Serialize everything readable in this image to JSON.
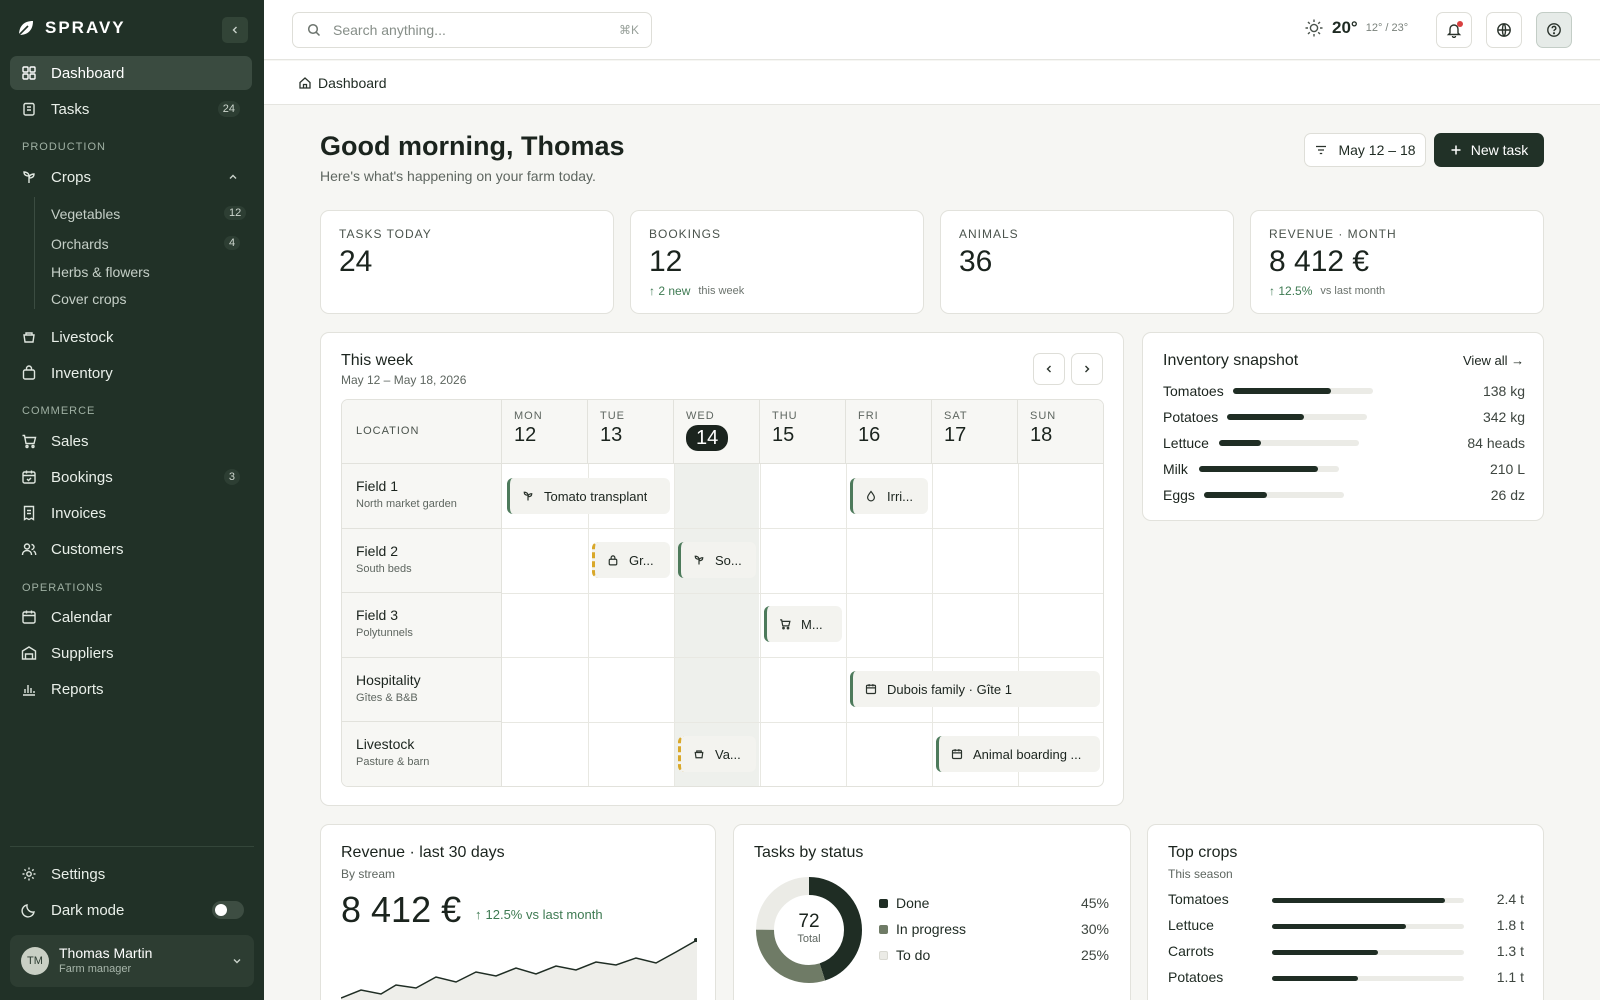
{
  "app": {
    "brand": "SPRAVY"
  },
  "sidebar": {
    "dashboard": "Dashboard",
    "tasks": {
      "label": "Tasks",
      "badge": "24"
    },
    "section_production": "PRODUCTION",
    "crops": "Crops",
    "crop_items": [
      {
        "label": "Vegetables",
        "badge": "12"
      },
      {
        "label": "Orchards",
        "badge": "4"
      },
      {
        "label": "Herbs & flowers",
        "badge": ""
      },
      {
        "label": "Cover crops",
        "badge": ""
      }
    ],
    "livestock": "Livestock",
    "inventory": "Inventory",
    "section_commerce": "COMMERCE",
    "sales": "Sales",
    "bookings": {
      "label": "Bookings",
      "badge": "3"
    },
    "invoices": "Invoices",
    "customers": "Customers",
    "section_operations": "OPERATIONS",
    "calendar": "Calendar",
    "suppliers": "Suppliers",
    "reports": "Reports",
    "settings": "Settings",
    "dark_mode": "Dark mode",
    "user": {
      "initials": "TM",
      "name": "Thomas Martin",
      "role": "Farm manager"
    }
  },
  "topbar": {
    "search_placeholder": "Search anything...",
    "shortcut": "⌘K",
    "weather": {
      "temp": "20°",
      "low": "12°",
      "high": "23°",
      "sep": "/"
    }
  },
  "breadcrumb": {
    "current": "Dashboard"
  },
  "header": {
    "greeting": "Good morning, Thomas",
    "subtitle": "Here's what's happening on your farm today.",
    "date_range": "May 12 – 18",
    "new_task": "New task"
  },
  "stats": [
    {
      "label": "TASKS TODAY",
      "value": "24",
      "delta": "",
      "note": ""
    },
    {
      "label": "BOOKINGS",
      "value": "12",
      "delta": "2 new",
      "note": "this week"
    },
    {
      "label": "ANIMALS",
      "value": "36",
      "delta": "",
      "note": ""
    },
    {
      "label": "REVENUE · MONTH",
      "value": "8 412 €",
      "delta": "12.5%",
      "note": "vs last month"
    }
  ],
  "week": {
    "title": "This week",
    "range": "May 12 – May 18, 2026",
    "location_header": "LOCATION",
    "days": [
      {
        "name": "MON",
        "date": "12"
      },
      {
        "name": "TUE",
        "date": "13"
      },
      {
        "name": "WED",
        "date": "14"
      },
      {
        "name": "THU",
        "date": "15"
      },
      {
        "name": "FRI",
        "date": "16"
      },
      {
        "name": "SAT",
        "date": "17"
      },
      {
        "name": "SUN",
        "date": "18"
      }
    ],
    "locations": [
      {
        "name": "Field 1",
        "desc": "North market garden"
      },
      {
        "name": "Field 2",
        "desc": "South beds"
      },
      {
        "name": "Field 3",
        "desc": "Polytunnels"
      },
      {
        "name": "Hospitality",
        "desc": "Gîtes & B&B"
      },
      {
        "name": "Livestock",
        "desc": "Pasture & barn"
      }
    ],
    "events": [
      {
        "label": "Tomato transplant",
        "icon": "sprout-icon",
        "status": "confirmed"
      },
      {
        "label": "Irri...",
        "icon": "droplet-icon",
        "status": "confirmed"
      },
      {
        "label": "Gr...",
        "icon": "lock-icon",
        "status": "pending"
      },
      {
        "label": "So...",
        "icon": "sprout-icon",
        "status": "confirmed"
      },
      {
        "label": "M...",
        "icon": "cart-icon",
        "status": "confirmed"
      },
      {
        "label": "Dubois family · Gîte 1",
        "icon": "calendar-icon",
        "status": "confirmed"
      },
      {
        "label": "Va...",
        "icon": "paw-icon",
        "status": "pending"
      },
      {
        "label": "Animal boarding ...",
        "icon": "calendar-icon",
        "status": "confirmed"
      }
    ]
  },
  "inventory": {
    "title": "Inventory snapshot",
    "view_all": "View all →",
    "items": [
      {
        "name": "Tomatoes",
        "amount": "138 kg",
        "level": 0.7
      },
      {
        "name": "Potatoes",
        "amount": "342 kg",
        "level": 0.55
      },
      {
        "name": "Lettuce",
        "amount": "84 heads",
        "level": 0.3
      },
      {
        "name": "Milk",
        "amount": "210 L",
        "level": 0.85
      },
      {
        "name": "Eggs",
        "amount": "26 dz",
        "level": 0.45
      }
    ]
  },
  "revenue": {
    "title": "Revenue · last 30 days",
    "subtitle": "By stream",
    "value": "8 412 €",
    "delta": "12.5% vs last month"
  },
  "tasks_status": {
    "title": "Tasks by status",
    "total": "72",
    "total_label": "Total",
    "items": [
      {
        "label": "Done",
        "pct": "45%",
        "value": 45,
        "color": "#1f2d24"
      },
      {
        "label": "In progress",
        "pct": "30%",
        "value": 30,
        "color": "#6f7b66"
      },
      {
        "label": "To do",
        "pct": "25%",
        "value": 25,
        "color": "#ebebe6"
      }
    ]
  },
  "top_crops": {
    "title": "Top crops",
    "subtitle": "This season",
    "items": [
      {
        "name": "Tomatoes",
        "amount": "2.4 t",
        "level": 0.9
      },
      {
        "name": "Lettuce",
        "amount": "1.8 t",
        "level": 0.7
      },
      {
        "name": "Carrots",
        "amount": "1.3 t",
        "level": 0.55
      },
      {
        "name": "Potatoes",
        "amount": "1.1 t",
        "level": 0.45
      }
    ]
  },
  "colors": {
    "sidebar": "#213127",
    "accent": "#213127",
    "positive": "#3e7a52",
    "pending": "#d9a82a"
  }
}
